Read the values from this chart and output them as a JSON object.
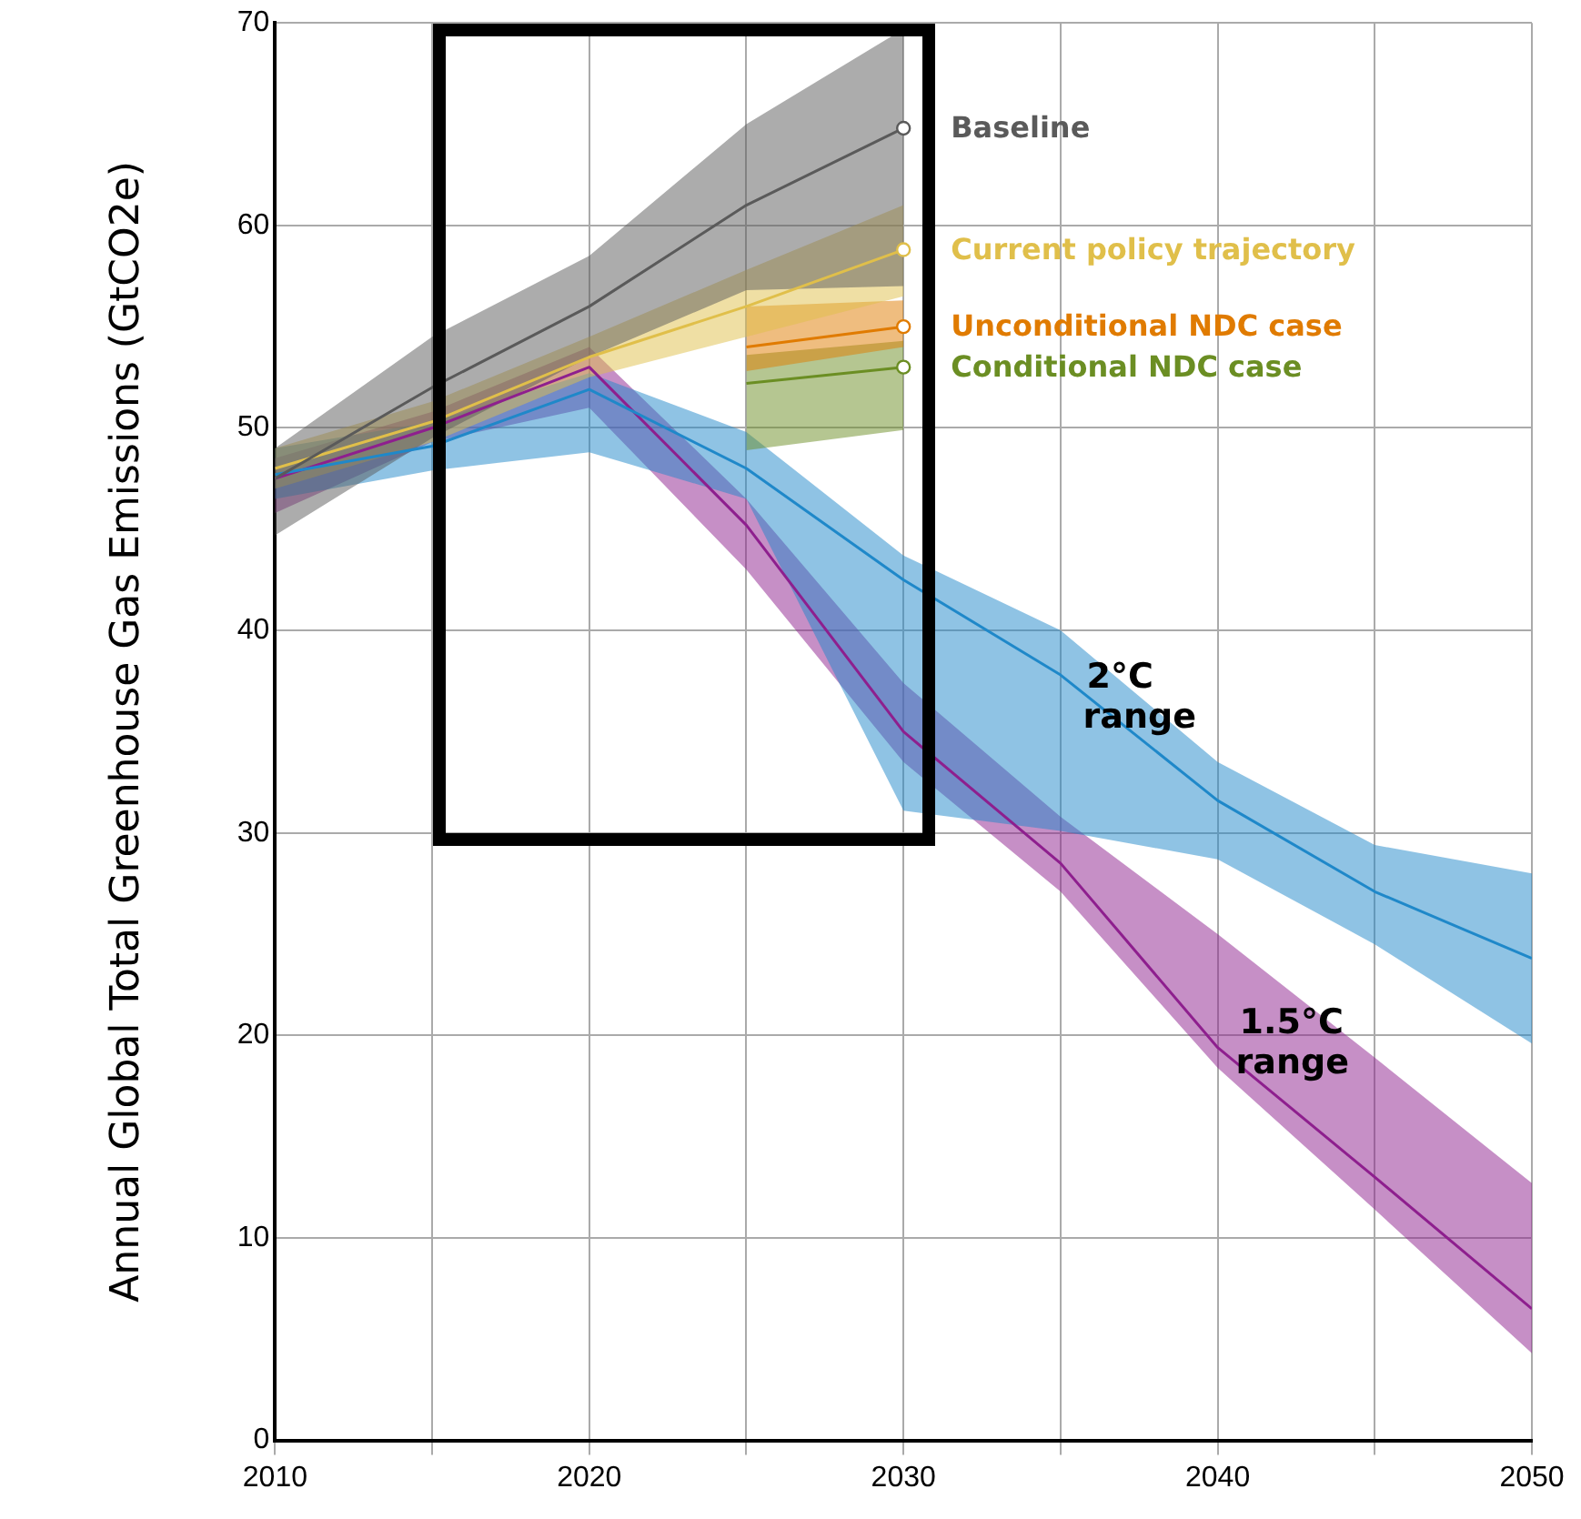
{
  "chart_data": {
    "type": "line",
    "ylabel": "Annual Global Total Greenhouse Gas Emissions (GtCO2e)",
    "xlim": [
      2010,
      2050
    ],
    "ylim": [
      0,
      70
    ],
    "xticks": [
      2010,
      {
        "value": 2015,
        "label": null
      },
      2020,
      {
        "value": 2025,
        "label": null
      },
      2030,
      {
        "value": 2035,
        "label": null
      },
      2040,
      {
        "value": 2045,
        "label": null
      },
      2050
    ],
    "yticks": [
      0,
      10,
      20,
      30,
      40,
      50,
      60,
      70
    ],
    "grid": true,
    "legend": false,
    "line_style": "solid",
    "series": [
      {
        "name": "Baseline",
        "color": "#5a5a5a",
        "x": [
          2010,
          2015,
          2020,
          2025,
          2030
        ],
        "values": [
          47.5,
          52,
          56,
          61,
          64.8
        ],
        "lower": [
          44.7,
          49.5,
          53.5,
          56.8,
          57
        ],
        "upper": [
          49,
          54.5,
          58.5,
          65,
          69.7
        ]
      },
      {
        "name": "Current policy trajectory",
        "color": "#e0bf4a",
        "x": [
          2010,
          2015,
          2020,
          2025,
          2030
        ],
        "values": [
          48,
          50.3,
          53.5,
          56,
          58.8
        ],
        "lower": [
          47,
          49.3,
          52.5,
          54.5,
          56.5
        ],
        "upper": [
          49,
          51.3,
          54.5,
          57.8,
          61
        ]
      },
      {
        "name": "Unconditional NDC case",
        "color": "#e07b00",
        "x": [
          2025,
          2030
        ],
        "values": [
          54,
          55
        ],
        "lower": [
          52.8,
          54
        ],
        "upper": [
          56,
          56.3
        ]
      },
      {
        "name": "Conditional NDC case",
        "color": "#6b8e23",
        "x": [
          2025,
          2030
        ],
        "values": [
          52.2,
          53
        ],
        "lower": [
          48.9,
          49.9
        ],
        "upper": [
          53.6,
          54.3
        ]
      },
      {
        "name": "2°C range",
        "color": "#1f88c9",
        "x": [
          2010,
          2015,
          2020,
          2025,
          2030,
          2035,
          2040,
          2045,
          2050
        ],
        "values": [
          47.7,
          49.1,
          51.9,
          48,
          42.5,
          37.8,
          31.6,
          27.1,
          23.8
        ],
        "lower": [
          46.5,
          47.9,
          48.8,
          46.5,
          31.1,
          30.1,
          28.7,
          24.5,
          19.6
        ],
        "upper": [
          49,
          50.3,
          52.7,
          49.8,
          43.7,
          40,
          33.5,
          29.4,
          28
        ]
      },
      {
        "name": "1.5°C range",
        "color": "#8e1f8e",
        "x": [
          2010,
          2015,
          2020,
          2025,
          2030,
          2035,
          2040,
          2045,
          2050
        ],
        "values": [
          47.5,
          50,
          53,
          45.2,
          35,
          28.5,
          19.4,
          13,
          6.5
        ],
        "lower": [
          45.8,
          49.3,
          51,
          43,
          33.5,
          27.1,
          18.4,
          11.4,
          4.3
        ],
        "upper": [
          48.5,
          50.8,
          54,
          46.5,
          37.4,
          30.8,
          25,
          18.9,
          12.7
        ]
      }
    ]
  }
}
